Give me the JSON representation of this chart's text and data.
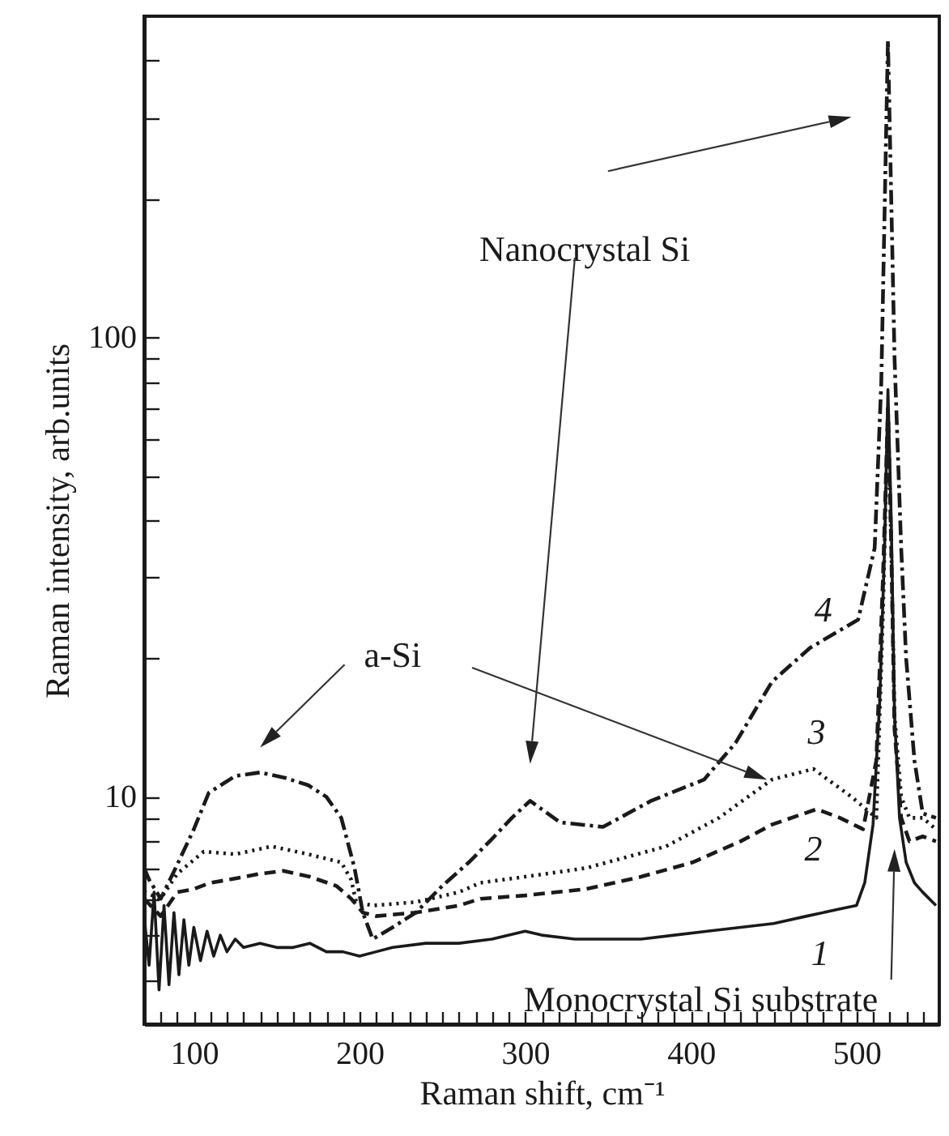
{
  "chart_data": {
    "type": "line",
    "xlabel": "Raman shift, cm⁻¹",
    "ylabel": "Raman intensity, arb.units",
    "log": "y",
    "grid": false,
    "xlim": [
      70,
      550
    ],
    "ylim": [
      3.2,
      500
    ],
    "xticks": [
      {
        "value": 80,
        "label": null
      },
      {
        "value": 90,
        "label": null
      },
      100,
      {
        "value": 110,
        "label": null
      },
      {
        "value": 120,
        "label": null
      },
      {
        "value": 130,
        "label": null
      },
      {
        "value": 140,
        "label": null
      },
      {
        "value": 150,
        "label": null
      },
      {
        "value": 160,
        "label": null
      },
      {
        "value": 170,
        "label": null
      },
      {
        "value": 180,
        "label": null
      },
      {
        "value": 190,
        "label": null
      },
      200,
      {
        "value": 210,
        "label": null
      },
      {
        "value": 220,
        "label": null
      },
      {
        "value": 230,
        "label": null
      },
      {
        "value": 240,
        "label": null
      },
      {
        "value": 250,
        "label": null
      },
      {
        "value": 260,
        "label": null
      },
      {
        "value": 270,
        "label": null
      },
      {
        "value": 280,
        "label": null
      },
      {
        "value": 290,
        "label": null
      },
      300,
      {
        "value": 310,
        "label": null
      },
      {
        "value": 320,
        "label": null
      },
      {
        "value": 330,
        "label": null
      },
      {
        "value": 340,
        "label": null
      },
      {
        "value": 350,
        "label": null
      },
      {
        "value": 360,
        "label": null
      },
      {
        "value": 370,
        "label": null
      },
      {
        "value": 380,
        "label": null
      },
      {
        "value": 390,
        "label": null
      },
      400,
      {
        "value": 410,
        "label": null
      },
      {
        "value": 420,
        "label": null
      },
      {
        "value": 430,
        "label": null
      },
      {
        "value": 440,
        "label": null
      },
      {
        "value": 450,
        "label": null
      },
      {
        "value": 460,
        "label": null
      },
      {
        "value": 470,
        "label": null
      },
      {
        "value": 480,
        "label": null
      },
      {
        "value": 490,
        "label": null
      },
      500,
      {
        "value": 510,
        "label": null
      },
      {
        "value": 520,
        "label": null
      },
      {
        "value": 530,
        "label": null
      },
      {
        "value": 540,
        "label": null
      }
    ],
    "yticks": [
      {
        "value": 4,
        "label": null
      },
      {
        "value": 5,
        "label": null
      },
      {
        "value": 6,
        "label": null
      },
      {
        "value": 7,
        "label": null
      },
      {
        "value": 8,
        "label": null
      },
      {
        "value": 9,
        "label": null
      },
      10,
      {
        "value": 20,
        "label": null
      },
      {
        "value": 30,
        "label": null
      },
      {
        "value": 40,
        "label": null
      },
      {
        "value": 50,
        "label": null
      },
      {
        "value": 60,
        "label": null
      },
      {
        "value": 70,
        "label": null
      },
      {
        "value": 80,
        "label": null
      },
      {
        "value": 90,
        "label": null
      },
      100,
      {
        "value": 200,
        "label": null
      },
      {
        "value": 300,
        "label": null
      },
      {
        "value": 400,
        "label": null
      }
    ],
    "series": [
      {
        "name": "1",
        "color": "#1a1a1a",
        "line_style": "solid",
        "x": [
          70,
          73,
          76,
          79,
          82,
          85,
          88,
          91,
          94,
          97,
          100,
          104,
          108,
          112,
          116,
          120,
          125,
          130,
          140,
          150,
          160,
          170,
          180,
          190,
          200,
          210,
          220,
          240,
          260,
          280,
          300,
          310,
          330,
          350,
          370,
          390,
          410,
          430,
          450,
          470,
          490,
          500,
          505,
          510,
          514,
          517,
          519,
          521,
          523,
          526,
          530,
          535,
          540,
          548
        ],
        "values": [
          5.5,
          4.3,
          6.2,
          3.8,
          5.8,
          3.9,
          5.6,
          4.1,
          5.4,
          4.3,
          5.2,
          4.4,
          5.1,
          4.5,
          5.0,
          4.6,
          4.9,
          4.7,
          4.8,
          4.7,
          4.7,
          4.8,
          4.6,
          4.6,
          4.5,
          4.6,
          4.7,
          4.8,
          4.8,
          4.9,
          5.1,
          5.0,
          4.9,
          4.9,
          4.9,
          5.0,
          5.1,
          5.2,
          5.3,
          5.5,
          5.7,
          5.8,
          6.5,
          8.7,
          16,
          35,
          77,
          40,
          15,
          9,
          7.2,
          6.5,
          6.2,
          5.8
        ]
      },
      {
        "name": "2",
        "color": "#1a1a1a",
        "line_style": "dashed",
        "x": [
          70,
          80,
          90,
          100,
          110,
          121,
          140,
          154,
          170,
          186,
          195,
          202,
          210,
          234,
          260,
          273,
          300,
          337,
          370,
          401,
          430,
          449,
          476,
          490,
          504,
          512,
          516,
          519,
          521,
          523,
          527,
          532,
          540,
          548
        ],
        "values": [
          6.0,
          5.5,
          6.2,
          6.3,
          6.5,
          6.6,
          6.8,
          6.9,
          6.7,
          6.4,
          6.0,
          5.6,
          5.5,
          5.6,
          5.8,
          6.0,
          6.1,
          6.3,
          6.7,
          7.2,
          8.0,
          8.7,
          9.4,
          9.0,
          8.5,
          12,
          30,
          70,
          35,
          14,
          9,
          8,
          8.2,
          8.0
        ]
      },
      {
        "name": "3",
        "color": "#1a1a1a",
        "line_style": "dotted",
        "x": [
          70,
          80,
          90,
          106,
          125,
          147,
          169,
          189,
          195,
          198,
          208,
          234,
          260,
          273,
          300,
          337,
          385,
          417,
          449,
          474,
          497,
          512,
          516,
          519,
          521,
          523,
          527,
          532,
          540,
          548
        ],
        "values": [
          6.2,
          6.0,
          6.8,
          7.6,
          7.5,
          7.8,
          7.5,
          7.2,
          6.6,
          5.9,
          5.8,
          5.9,
          6.2,
          6.5,
          6.7,
          7.0,
          7.8,
          9.0,
          10.9,
          11.5,
          10.0,
          9.0,
          25,
          70,
          35,
          15,
          10,
          9,
          9,
          8.5
        ]
      },
      {
        "name": "4",
        "color": "#1a1a1a",
        "line_style": "dashdot",
        "x": [
          70,
          73,
          80,
          89,
          100,
          109,
          125,
          140,
          155,
          169,
          180,
          189,
          197,
          202,
          208,
          220,
          234,
          250,
          266,
          280,
          292,
          303,
          321,
          347,
          376,
          408,
          427,
          449,
          472,
          501,
          511,
          515,
          519,
          523,
          527,
          530,
          535,
          540,
          548
        ],
        "values": [
          7.0,
          6.6,
          6.0,
          7.0,
          8.5,
          10.2,
          11.1,
          11.3,
          11.0,
          10.6,
          10.0,
          9.0,
          7.0,
          5.6,
          4.9,
          5.2,
          5.6,
          6.4,
          7.2,
          8.1,
          9.0,
          9.8,
          8.8,
          8.6,
          9.8,
          10.9,
          13.1,
          17.8,
          21.1,
          24.3,
          34.8,
          80,
          443,
          90,
          34.8,
          20,
          12,
          9.2,
          9.0
        ]
      }
    ],
    "annotations": [
      "Nanocrystal Si",
      "a-Si",
      "Monocrystal Si substrate"
    ]
  }
}
